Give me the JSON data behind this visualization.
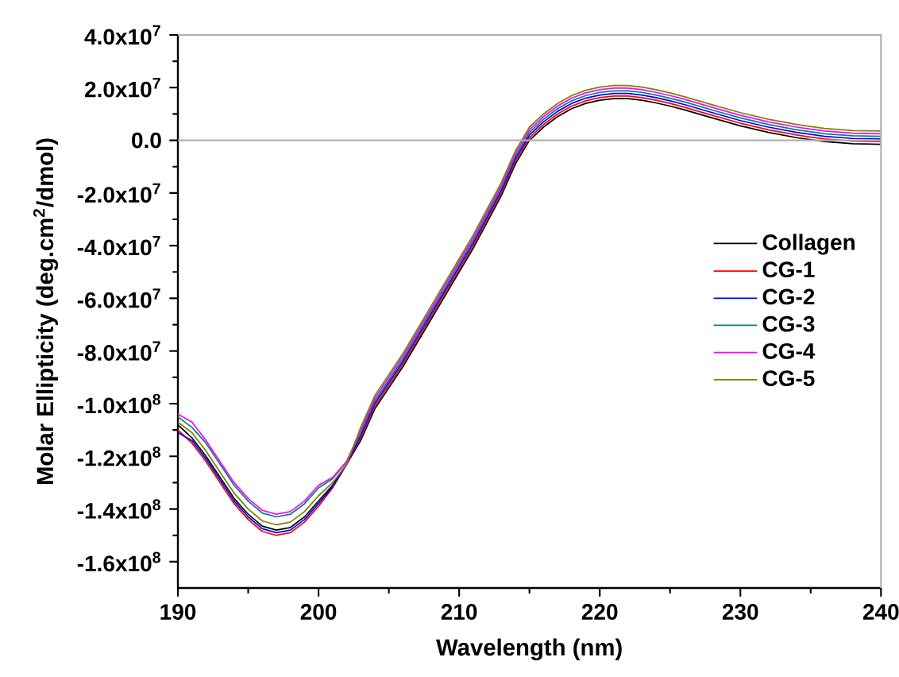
{
  "chart_data": {
    "type": "line",
    "xlabel": "Wavelength (nm)",
    "ylabel": "Molar Ellipticity (deg.cm$^{2}$/dmol)",
    "x": [
      190,
      191,
      192,
      193,
      194,
      195,
      196,
      197,
      198,
      199,
      200,
      201,
      202,
      203,
      204,
      205,
      206,
      207,
      208,
      209,
      210,
      211,
      212,
      213,
      214,
      215,
      216,
      217,
      218,
      219,
      220,
      221,
      222,
      223,
      224,
      225,
      226,
      228,
      230,
      232,
      234,
      236,
      238,
      240
    ],
    "series": [
      {
        "name": "Collagen",
        "color": "#000000",
        "values": [
          -108000000.0,
          -113000000.0,
          -120000000.0,
          -128000000.0,
          -136000000.0,
          -142000000.0,
          -146500000.0,
          -148000000.0,
          -147000000.0,
          -143000000.0,
          -137000000.0,
          -131000000.0,
          -123000000.0,
          -114000000.0,
          -102000000.0,
          -94000000.0,
          -86000000.0,
          -77000000.0,
          -68000000.0,
          -59000000.0,
          -50000000.0,
          -41000000.0,
          -31000000.0,
          -21000000.0,
          -9000000.0,
          0,
          5000000.0,
          9000000.0,
          12000000.0,
          14000000.0,
          15200000.0,
          15800000.0,
          15800000.0,
          15200000.0,
          14200000.0,
          13000000.0,
          11600000.0,
          8500000.0,
          5500000.0,
          3000000.0,
          1000000.0,
          -500000.0,
          -1300000.0,
          -1500000.0
        ]
      },
      {
        "name": "CG-1",
        "color": "#ff0000",
        "values": [
          -110000000.0,
          -115000000.0,
          -122000000.0,
          -130000000.0,
          -138000000.0,
          -144000000.0,
          -148500000.0,
          -150000000.0,
          -149000000.0,
          -145000000.0,
          -139000000.0,
          -132000000.0,
          -123000000.0,
          -113000000.0,
          -101000000.0,
          -93000000.0,
          -85000000.0,
          -76000000.0,
          -67000000.0,
          -58000000.0,
          -49000000.0,
          -40000000.0,
          -30000000.0,
          -20000000.0,
          -8000000.0,
          1000000.0,
          6000000.0,
          10000000.0,
          13000000.0,
          15000000.0,
          16200000.0,
          16800000.0,
          16800000.0,
          16200000.0,
          15200000.0,
          14000000.0,
          12600000.0,
          9500000.0,
          6500000.0,
          4000000.0,
          2000000.0,
          500000.0,
          -300000.0,
          -500000.0
        ]
      },
      {
        "name": "CG-2",
        "color": "#0000ff",
        "values": [
          -111000000.0,
          -114000000.0,
          -121000000.0,
          -129000000.0,
          -137000000.0,
          -143000000.0,
          -147500000.0,
          -149000000.0,
          -148000000.0,
          -144000000.0,
          -138000000.0,
          -131500000.0,
          -123000000.0,
          -112000000.0,
          -100000000.0,
          -92000000.0,
          -84000000.0,
          -75000000.0,
          -66000000.0,
          -57000000.0,
          -48000000.0,
          -39000000.0,
          -29000000.0,
          -19000000.0,
          -7000000.0,
          2000000.0,
          7000000.0,
          11000000.0,
          14000000.0,
          16000000.0,
          17200000.0,
          17800000.0,
          17800000.0,
          17200000.0,
          16200000.0,
          15000000.0,
          13600000.0,
          10500000.0,
          7500000.0,
          5000000.0,
          3000000.0,
          1500000.0,
          700000.0,
          500000.0
        ]
      },
      {
        "name": "CG-3",
        "color": "#008080",
        "values": [
          -105000000.0,
          -109000000.0,
          -115000000.0,
          -123000000.0,
          -131000000.0,
          -137000000.0,
          -141500000.0,
          -143000000.0,
          -142000000.0,
          -138000000.0,
          -132000000.0,
          -128500000.0,
          -122000000.0,
          -111000000.0,
          -99000000.0,
          -91000000.0,
          -83000000.0,
          -74000000.0,
          -65000000.0,
          -56000000.0,
          -47000000.0,
          -38000000.0,
          -28000000.0,
          -18000000.0,
          -6000000.0,
          3000000.0,
          8000000.0,
          12000000.0,
          15000000.0,
          17000000.0,
          18200000.0,
          18800000.0,
          18800000.0,
          18200000.0,
          17200000.0,
          16000000.0,
          14600000.0,
          11500000.0,
          8500000.0,
          6000000.0,
          4000000.0,
          2500000.0,
          1700000.0,
          1500000.0
        ]
      },
      {
        "name": "CG-4",
        "color": "#ff00ff",
        "values": [
          -104000000.0,
          -107000000.0,
          -114000000.0,
          -122000000.0,
          -130000000.0,
          -136000000.0,
          -140500000.0,
          -142000000.0,
          -141000000.0,
          -137000000.0,
          -131000000.0,
          -128000000.0,
          -122000000.0,
          -110000000.0,
          -98000000.0,
          -90000000.0,
          -82000000.0,
          -73000000.0,
          -64000000.0,
          -55000000.0,
          -46000000.0,
          -37000000.0,
          -27000000.0,
          -17000000.0,
          -5000000.0,
          4000000.0,
          9000000.0,
          13000000.0,
          16000000.0,
          18000000.0,
          19200000.0,
          19800000.0,
          19800000.0,
          19200000.0,
          18200000.0,
          17000000.0,
          15600000.0,
          12500000.0,
          9500000.0,
          7000000.0,
          5000000.0,
          3500000.0,
          2700000.0,
          2500000.0
        ]
      },
      {
        "name": "CG-5",
        "color": "#808000",
        "values": [
          -107000000.0,
          -111000000.0,
          -118000000.0,
          -126000000.0,
          -134000000.0,
          -140000000.0,
          -144500000.0,
          -146000000.0,
          -145000000.0,
          -141000000.0,
          -135000000.0,
          -130000000.0,
          -123000000.0,
          -109000000.0,
          -97000000.0,
          -89000000.0,
          -81000000.0,
          -72000000.0,
          -63000000.0,
          -54000000.0,
          -45000000.0,
          -36000000.0,
          -26000000.0,
          -16000000.0,
          -4000000.0,
          5000000.0,
          10000000.0,
          14000000.0,
          17000000.0,
          19000000.0,
          20200000.0,
          20800000.0,
          20800000.0,
          20200000.0,
          19200000.0,
          18000000.0,
          16600000.0,
          13500000.0,
          10500000.0,
          8000000.0,
          6000000.0,
          4500000.0,
          3700000.0,
          3500000.0
        ]
      }
    ],
    "xlim": [
      190,
      240
    ],
    "xticks": [
      190,
      200,
      210,
      220,
      230,
      240
    ],
    "ylim": [
      -170000000.0,
      40000000.0
    ],
    "yticks": [
      {
        "value": 40000000.0,
        "label": "4.0x10$^{7}$"
      },
      {
        "value": 20000000.0,
        "label": "2.0x10$^{7}$"
      },
      {
        "value": 0,
        "label": "0.0"
      },
      {
        "value": -20000000.0,
        "label": "-2.0x10$^{7}$"
      },
      {
        "value": -40000000.0,
        "label": "-4.0x10$^{7}$"
      },
      {
        "value": -60000000.0,
        "label": "-6.0x10$^{7}$"
      },
      {
        "value": -80000000.0,
        "label": "-8.0x10$^{7}$"
      },
      {
        "value": -100000000.0,
        "label": "-1.0x10$^{8}$"
      },
      {
        "value": -120000000.0,
        "label": "-1.2x10$^{8}$"
      },
      {
        "value": -140000000.0,
        "label": "-1.4x10$^{8}$"
      },
      {
        "value": -160000000.0,
        "label": "-1.6x10$^{8}$"
      }
    ],
    "ref_lines": [
      {
        "axis": "y",
        "value": 0,
        "color": "#b0b0b0"
      }
    ],
    "legend": "right",
    "grid": false,
    "marker": "none",
    "line_style": "solid"
  }
}
